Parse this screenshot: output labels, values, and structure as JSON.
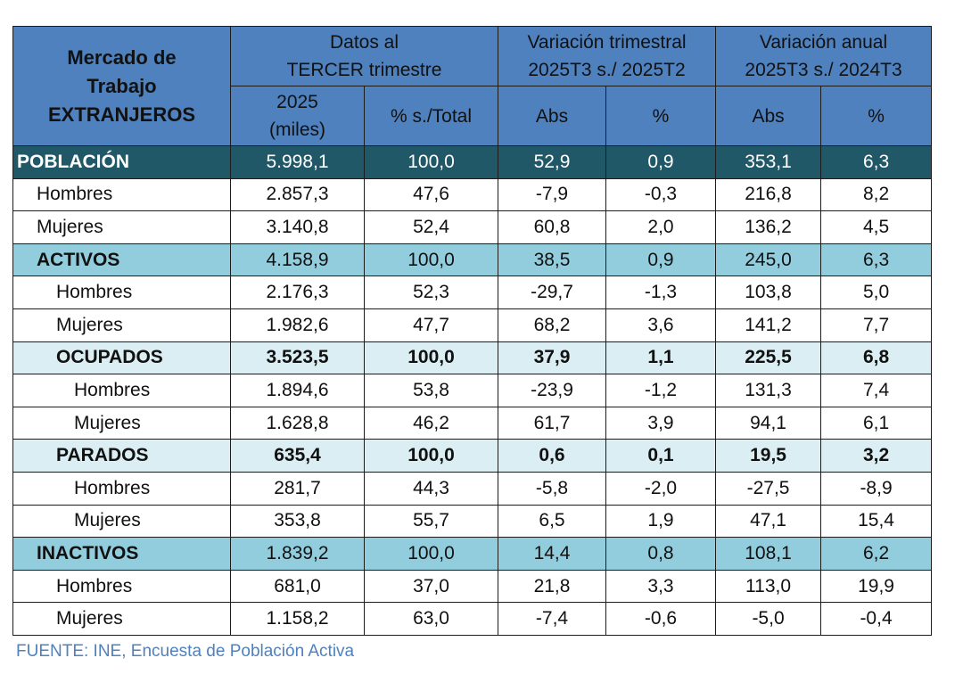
{
  "header": {
    "title_line1": "Mercado de",
    "title_line2": "Trabajo",
    "title_line3": "EXTRANJEROS",
    "group1_line1": "Datos al",
    "group1_line2": "TERCER trimestre",
    "group2_line1": "Variación trimestral",
    "group2_line2": "2025T3 s./ 2025T2",
    "group3_line1": "Variación anual",
    "group3_line2": "2025T3 s./ 2024T3",
    "col_2025_line1": "2025",
    "col_2025_line2": "(miles)",
    "col_pct_total": "% s./Total",
    "col_abs_q": "Abs",
    "col_pct_q": "%",
    "col_abs_y": "Abs",
    "col_pct_y": "%"
  },
  "rows": [
    {
      "label": "POBLACIÓN",
      "kind": "main",
      "level": 1,
      "values": [
        "5.998,1",
        "100,0",
        "52,9",
        "0,9",
        "353,1",
        "6,3"
      ]
    },
    {
      "label": "Hombres",
      "kind": "plain",
      "level": 2,
      "values": [
        "2.857,3",
        "47,6",
        "-7,9",
        "-0,3",
        "216,8",
        "8,2"
      ]
    },
    {
      "label": "Mujeres",
      "kind": "plain",
      "level": 2,
      "values": [
        "3.140,8",
        "52,4",
        "60,8",
        "2,0",
        "136,2",
        "4,5"
      ]
    },
    {
      "label": "ACTIVOS",
      "kind": "sec",
      "level": 2,
      "values": [
        "4.158,9",
        "100,0",
        "38,5",
        "0,9",
        "245,0",
        "6,3"
      ]
    },
    {
      "label": "Hombres",
      "kind": "plain",
      "level": 3,
      "values": [
        "2.176,3",
        "52,3",
        "-29,7",
        "-1,3",
        "103,8",
        "5,0"
      ]
    },
    {
      "label": "Mujeres",
      "kind": "plain",
      "level": 3,
      "values": [
        "1.982,6",
        "47,7",
        "68,2",
        "3,6",
        "141,2",
        "7,7"
      ]
    },
    {
      "label": "OCUPADOS",
      "kind": "sub",
      "level": 3,
      "values": [
        "3.523,5",
        "100,0",
        "37,9",
        "1,1",
        "225,5",
        "6,8"
      ]
    },
    {
      "label": "Hombres",
      "kind": "plain",
      "level": 4,
      "values": [
        "1.894,6",
        "53,8",
        "-23,9",
        "-1,2",
        "131,3",
        "7,4"
      ]
    },
    {
      "label": "Mujeres",
      "kind": "plain",
      "level": 4,
      "values": [
        "1.628,8",
        "46,2",
        "61,7",
        "3,9",
        "94,1",
        "6,1"
      ]
    },
    {
      "label": "PARADOS",
      "kind": "sub",
      "level": 3,
      "values": [
        "635,4",
        "100,0",
        "0,6",
        "0,1",
        "19,5",
        "3,2"
      ]
    },
    {
      "label": "Hombres",
      "kind": "plain",
      "level": 4,
      "values": [
        "281,7",
        "44,3",
        "-5,8",
        "-2,0",
        "-27,5",
        "-8,9"
      ]
    },
    {
      "label": "Mujeres",
      "kind": "plain",
      "level": 4,
      "values": [
        "353,8",
        "55,7",
        "6,5",
        "1,9",
        "47,1",
        "15,4"
      ]
    },
    {
      "label": "INACTIVOS",
      "kind": "sec",
      "level": 2,
      "values": [
        "1.839,2",
        "100,0",
        "14,4",
        "0,8",
        "108,1",
        "6,2"
      ]
    },
    {
      "label": "Hombres",
      "kind": "plain",
      "level": 3,
      "values": [
        "681,0",
        "37,0",
        "21,8",
        "3,3",
        "113,0",
        "19,9"
      ]
    },
    {
      "label": "Mujeres",
      "kind": "plain",
      "level": 3,
      "values": [
        "1.158,2",
        "63,0",
        "-7,4",
        "-0,6",
        "-5,0",
        "-0,4"
      ]
    }
  ],
  "footer": {
    "source": "FUENTE: INE, Encuesta de Población Activa"
  },
  "colors": {
    "header_bg": "#4e81bd",
    "main_row_bg": "#215868",
    "section_row_bg": "#92cddd",
    "subsection_row_bg": "#daeef3",
    "source_text": "#4f81bd"
  }
}
